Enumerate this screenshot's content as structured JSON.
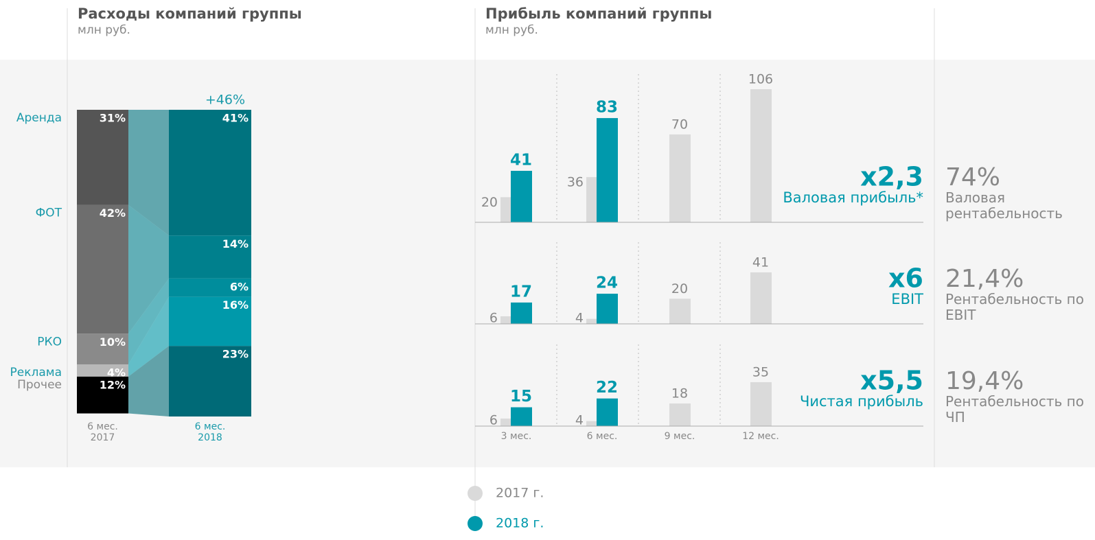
{
  "chart_data": [
    {
      "type": "stacked_bar",
      "title": "Расходы компаний группы",
      "subtitle": "млн руб.",
      "categories": [
        "6 мес. 2017",
        "6 мес. 2018"
      ],
      "annotation": "+46%",
      "ylim": [
        0,
        100
      ],
      "series": [
        {
          "name": "Аренда",
          "label_color": "#1a9aaa",
          "colors": [
            "#555555",
            "#00737f"
          ],
          "values": [
            31,
            41
          ],
          "value_labels": [
            "31%",
            "41%"
          ]
        },
        {
          "name": "ФОТ",
          "label_color": "#1a9aaa",
          "colors": [
            "#6e6e6e",
            "#00808d"
          ],
          "values": [
            42,
            14
          ],
          "value_labels": [
            "42%",
            "14%"
          ]
        },
        {
          "name": "РКО",
          "label_color": "#1a9aaa",
          "colors": [
            "#8a8a8a",
            "#008d9c"
          ],
          "values": [
            10,
            6
          ],
          "value_labels": [
            "10%",
            "6%"
          ]
        },
        {
          "name": "Реклама",
          "label_color": "#1a9aaa",
          "colors": [
            "#b8b8b8",
            "#0099aa"
          ],
          "values": [
            4,
            16
          ],
          "value_labels": [
            "4%",
            "16%"
          ]
        },
        {
          "name": "Прочее",
          "label_color": "#888888",
          "colors": [
            "#000000",
            "#006a77"
          ],
          "values": [
            12,
            23
          ],
          "value_labels": [
            "12%",
            "23%"
          ]
        }
      ]
    },
    {
      "type": "bar",
      "title": "Прибыль компаний группы",
      "subtitle": "млн руб.",
      "label": "Валовая прибыль*",
      "annotation": "x2,3",
      "margin": "74%",
      "margin_label": "Валовая рентабельность",
      "ylim": [
        0,
        106
      ],
      "series": [
        {
          "name": "2017 г.",
          "color": "#dadada",
          "values": [
            20,
            36,
            70,
            106
          ]
        },
        {
          "name": "2018 г.",
          "color": "#0099ac",
          "values": [
            41,
            83,
            null,
            null
          ]
        }
      ]
    },
    {
      "type": "bar",
      "label": "EBIT",
      "annotation": "x6",
      "margin": "21,4%",
      "margin_label": "Рентабельность по EBIT",
      "ylim": [
        0,
        106
      ],
      "series": [
        {
          "color": "#dadada",
          "values": [
            6,
            4,
            20,
            41
          ]
        },
        {
          "color": "#0099ac",
          "values": [
            17,
            24,
            null,
            null
          ]
        }
      ]
    },
    {
      "type": "bar",
      "label": "Чистая прибыль",
      "annotation": "x5,5",
      "margin": "19,4%",
      "margin_label": "Рентабельность по ЧП",
      "ylim": [
        0,
        106
      ],
      "categories": [
        "3 мес.",
        "6 мес.",
        "9 мес.",
        "12 мес."
      ],
      "series": [
        {
          "color": "#dadada",
          "values": [
            6,
            4,
            18,
            35
          ]
        },
        {
          "color": "#0099ac",
          "values": [
            15,
            22,
            null,
            null
          ]
        }
      ]
    }
  ]
}
